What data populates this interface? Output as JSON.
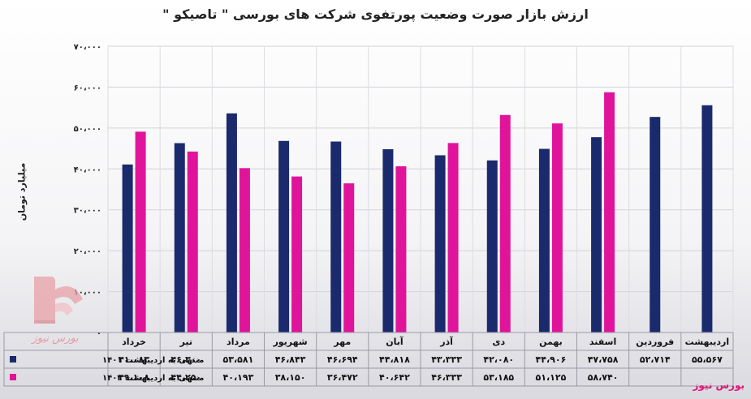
{
  "chart_data": {
    "type": "bar",
    "title": "ارزش بازار صورت وضعیت پورتفوی شرکت های بورسی \" تاصیکو \"",
    "ylabel": "میلیارد تومان",
    "ylim": [
      0,
      70000
    ],
    "yticks": [
      "۰",
      "۱۰،۰۰۰",
      "۲۰،۰۰۰",
      "۳۰،۰۰۰",
      "۴۰،۰۰۰",
      "۵۰،۰۰۰",
      "۶۰،۰۰۰",
      "۷۰،۰۰۰"
    ],
    "grid": true,
    "legend_placement": "table-left",
    "categories": [
      "خرداد",
      "تیر",
      "مرداد",
      "شهریور",
      "مهر",
      "آبان",
      "آذر",
      "دی",
      "بهمن",
      "اسفند",
      "فروردین",
      "اردیبهشت"
    ],
    "series": [
      {
        "name": "منتهی به اردیبهشت ۱۴۰۱",
        "color": "#1a2a6c",
        "values": [
          41083,
          46300,
          53581,
          46843,
          46694,
          44818,
          43333,
          42080,
          44906,
          47758,
          52714,
          55567
        ],
        "labels": [
          "۴۱،۰۸۳",
          "۴۶،۳۰۰",
          "۵۳،۵۸۱",
          "۴۶،۸۴۳",
          "۴۶،۶۹۴",
          "۴۴،۸۱۸",
          "۴۳،۳۳۳",
          "۴۲،۰۸۰",
          "۴۴،۹۰۶",
          "۴۷،۷۵۸",
          "۵۲،۷۱۴",
          "۵۵،۵۶۷"
        ]
      },
      {
        "name": "منتهی به اردیبهشت ۱۴۰۲",
        "color": "#e0149a",
        "values": [
          49108,
          44250,
          40193,
          38150,
          36472,
          40642,
          46333,
          53185,
          51125,
          58740,
          null,
          null
        ],
        "labels": [
          "۴۹،۱۰۸",
          "۴۴،۲۵۰",
          "۴۰،۱۹۳",
          "۳۸،۱۵۰",
          "۳۶،۴۷۲",
          "۴۰،۶۴۲",
          "۴۶،۳۳۳",
          "۵۳،۱۸۵",
          "۵۱،۱۲۵",
          "۵۸،۷۴۰",
          "",
          ""
        ]
      }
    ]
  },
  "brand": {
    "text": "بورس نیوز",
    "logo_text": "بورس نیوز"
  }
}
